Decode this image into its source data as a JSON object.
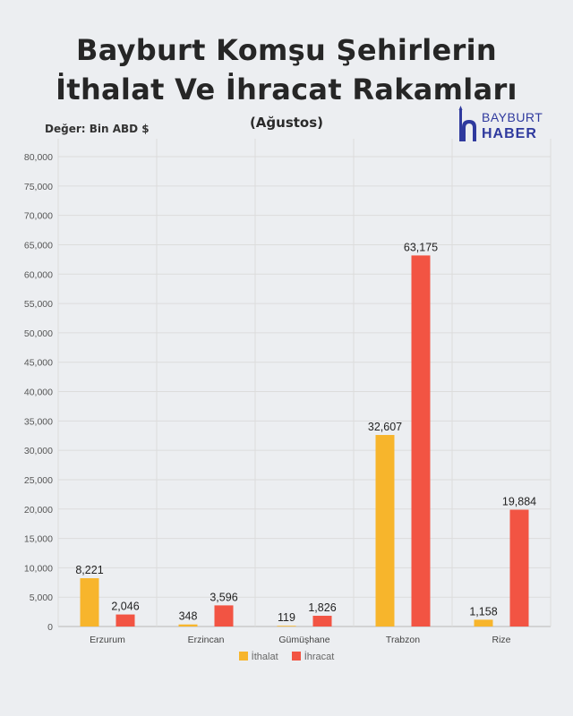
{
  "title_line1": "Bayburt Komşu Şehirlerin",
  "title_line2": "İthalat Ve İhracat Rakamları",
  "subtitle": "(Ağustos)",
  "unit_label": "Değer: Bin  ABD $",
  "logo": {
    "line1": "BAYBURT",
    "line2": "HABER",
    "icon": "mosque-h-icon",
    "color": "#2f3a9e"
  },
  "chart_data": {
    "type": "bar",
    "categories": [
      "Erzurum",
      "Erzincan",
      "Gümüşhane",
      "Trabzon",
      "Rize"
    ],
    "series": [
      {
        "name": "İthalat",
        "color": "#f7b52c",
        "values": [
          8221,
          348,
          119,
          32607,
          1158
        ],
        "labels": [
          "8,221",
          "348",
          "119",
          "32,607",
          "1,158"
        ]
      },
      {
        "name": "İhracat",
        "color": "#f25443",
        "values": [
          2046,
          3596,
          1826,
          63175,
          19884
        ],
        "labels": [
          "2,046",
          "3,596",
          "1,826",
          "63,175",
          "19,884"
        ]
      }
    ],
    "ylim": [
      0,
      80000
    ],
    "yticks": [
      "0",
      "5,000",
      "10,000",
      "15,000",
      "20,000",
      "25,000",
      "30,000",
      "35,000",
      "40,000",
      "45,000",
      "50,000",
      "55,000",
      "60,000",
      "65,000",
      "70,000",
      "75,000",
      "80,000"
    ],
    "grid": true,
    "legend_position": "bottom"
  }
}
